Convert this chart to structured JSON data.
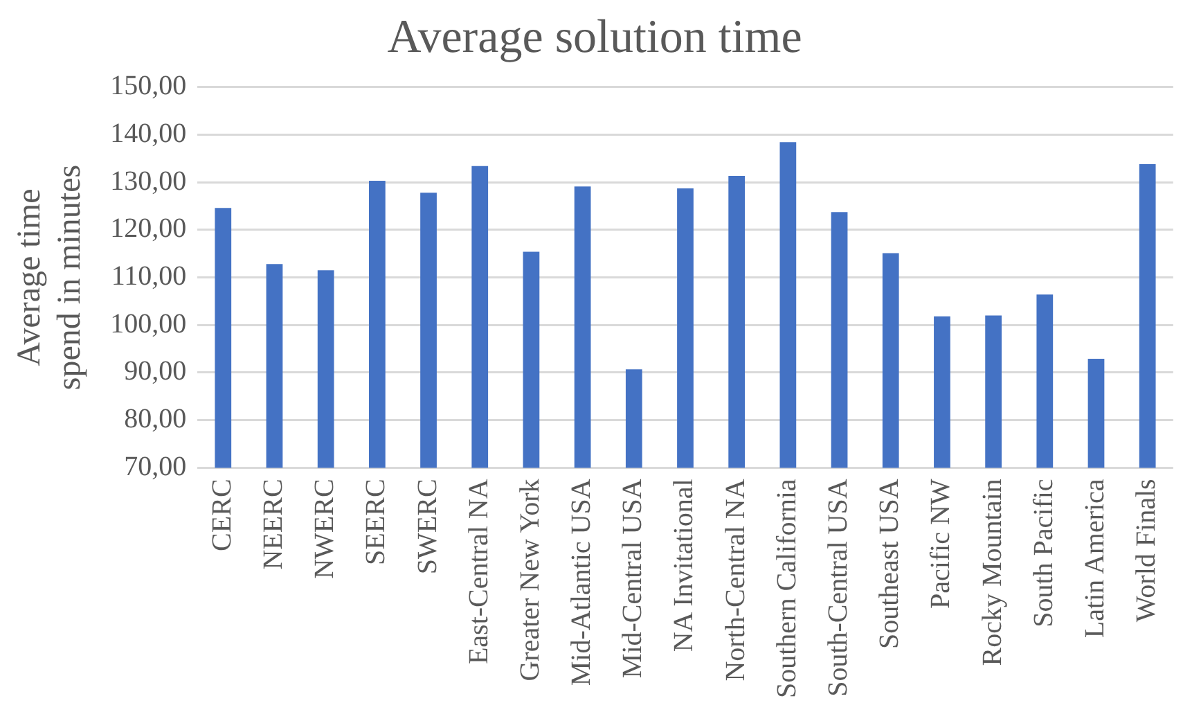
{
  "chart_data": {
    "type": "bar",
    "title": "Average solution time",
    "ylabel": "Average time spend in minutes",
    "categories": [
      "CERC",
      "NEERC",
      "NWERC",
      "SEERC",
      "SWERC",
      "East-Central NA",
      "Greater New York",
      "Mid-Atlantic USA",
      "Mid-Central USA",
      "NA Invitational",
      "North-Central NA",
      "Southern California",
      "South-Central USA",
      "Southeast USA",
      "Pacific NW",
      "Rocky Mountain",
      "South Pacific",
      "Latin America",
      "World Finals"
    ],
    "values": [
      124.6,
      112.8,
      111.5,
      130.3,
      127.8,
      133.4,
      115.4,
      129.1,
      90.7,
      128.7,
      131.3,
      138.4,
      123.7,
      115.1,
      101.8,
      102.0,
      106.4,
      92.9,
      133.8
    ],
    "color": "#4472c4",
    "ylim": [
      70,
      150
    ],
    "yticks": [
      {
        "value": 70,
        "label": "70,00"
      },
      {
        "value": 80,
        "label": "80,00"
      },
      {
        "value": 90,
        "label": "90,00"
      },
      {
        "value": 100,
        "label": "100,00"
      },
      {
        "value": 110,
        "label": "110,00"
      },
      {
        "value": 120,
        "label": "120,00"
      },
      {
        "value": 130,
        "label": "130,00"
      },
      {
        "value": 140,
        "label": "140,00"
      },
      {
        "value": 150,
        "label": "150,00"
      }
    ],
    "grid": "y",
    "legend": false
  }
}
